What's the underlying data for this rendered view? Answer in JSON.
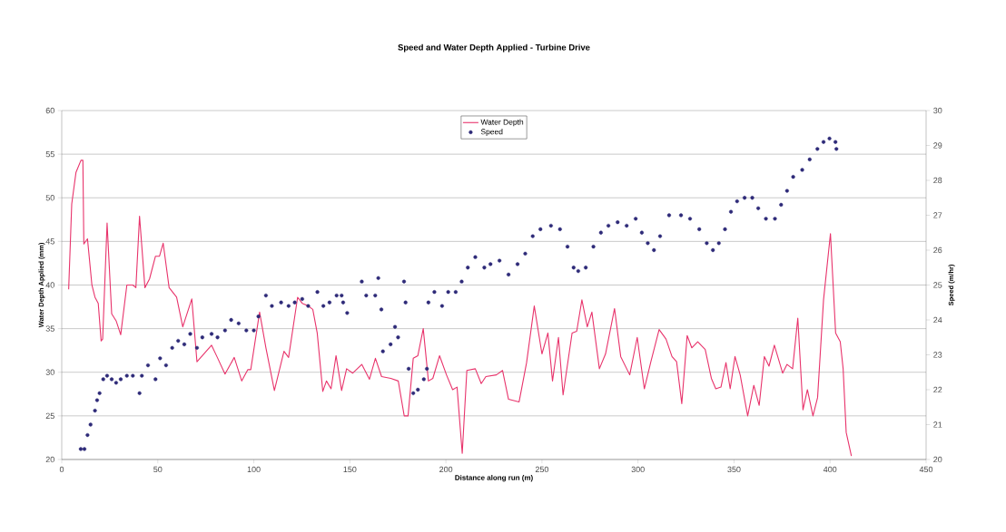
{
  "chart_data": {
    "type": "line",
    "title": "Speed and Water Depth Applied - Turbine Drive",
    "xlabel": "Distance along run (m)",
    "ylabel": "Water Depth Applied (mm)",
    "y2label": "Speed (m/hr)",
    "xlim": [
      0,
      450
    ],
    "xticks": [
      0,
      50,
      100,
      150,
      200,
      250,
      300,
      350,
      400,
      450
    ],
    "ylim": [
      20,
      60
    ],
    "yticks": [
      20,
      25,
      30,
      35,
      40,
      45,
      50,
      55,
      60
    ],
    "y2lim": [
      20,
      30
    ],
    "y2ticks": [
      20,
      21,
      22,
      23,
      24,
      25,
      26,
      27,
      28,
      29,
      30
    ],
    "grid": "y",
    "legend": "top",
    "series": [
      {
        "name": "Water Depth",
        "color": "#e8336b",
        "marker": "none",
        "line_style": "solid",
        "x": [
          3.6,
          5.2,
          7.4,
          10,
          11,
          11.5,
          13.4,
          15.7,
          17.3,
          19,
          20.5,
          21.3,
          23.6,
          26,
          28.3,
          30.7,
          33.9,
          37,
          38.6,
          40.5,
          43.3,
          45.7,
          48.8,
          50.9,
          52.8,
          55.9,
          59.8,
          63,
          67.7,
          70.4,
          78,
          81,
          85,
          89.8,
          93.7,
          96.9,
          98.4,
          103,
          106.3,
          110.7,
          115.7,
          118.1,
          122.8,
          125.2,
          128.3,
          130.7,
          133,
          135.9,
          137.8,
          140.2,
          142.8,
          145.7,
          148.3,
          151.5,
          156.2,
          160.2,
          163.3,
          166.5,
          171.3,
          175.2,
          178.3,
          180.3,
          183,
          185.4,
          188.2,
          190.9,
          193.2,
          196.7,
          200.3,
          203.5,
          205.8,
          208.5,
          210.9,
          215.3,
          218.4,
          220.8,
          226.3,
          229.5,
          232.6,
          238.1,
          242,
          246,
          250,
          253.1,
          255.5,
          258.6,
          261,
          265.7,
          268.1,
          270.8,
          273.6,
          276,
          279.9,
          283.1,
          287.8,
          291,
          295.7,
          299.6,
          303.3,
          306.7,
          311,
          314.6,
          317.7,
          320.1,
          322.8,
          325.6,
          328,
          331.1,
          335,
          338.2,
          340.5,
          343.2,
          345.8,
          348,
          350.5,
          353.2,
          357.1,
          360.3,
          363.1,
          365.8,
          368.2,
          371,
          375.3,
          377.6,
          380.5,
          383.2,
          385.9,
          388.2,
          391.1,
          393.5,
          396.6,
          400.2,
          402.9,
          405.3,
          406.8,
          408.4,
          411.1
        ],
        "values": [
          39.5,
          49.3,
          52.9,
          54.3,
          54.3,
          44.7,
          45.3,
          40,
          38.6,
          37.9,
          33.6,
          33.8,
          47.1,
          36.7,
          35.9,
          34.3,
          40,
          40,
          39.7,
          47.9,
          39.7,
          40.7,
          43.3,
          43.3,
          44.8,
          39.7,
          38.6,
          35.2,
          38.4,
          31.2,
          33.1,
          31.7,
          29.8,
          31.7,
          29,
          30.3,
          30.3,
          36.9,
          32.8,
          27.9,
          32.4,
          31.7,
          38.6,
          37.9,
          37.6,
          37.2,
          34.5,
          27.8,
          29,
          28.1,
          31.9,
          27.9,
          30.4,
          29.9,
          30.9,
          29.2,
          31.6,
          29.5,
          29.3,
          29,
          25,
          25,
          31.6,
          31.9,
          35,
          29,
          29.3,
          31.9,
          29.7,
          28,
          28.3,
          20.7,
          30.2,
          30.4,
          28.7,
          29.5,
          29.7,
          30.2,
          26.9,
          26.6,
          31.1,
          37.6,
          32.1,
          34.5,
          29,
          34,
          27.4,
          34.5,
          34.7,
          38.3,
          35.2,
          36.9,
          30.4,
          32.1,
          37.3,
          31.8,
          29.7,
          34,
          28.1,
          31.2,
          34.9,
          33.8,
          31.8,
          31.2,
          26.4,
          34.2,
          32.8,
          33.5,
          32.6,
          29.3,
          28.1,
          28.3,
          31.1,
          28.1,
          31.8,
          29.7,
          25,
          28.5,
          26.2,
          31.8,
          30.7,
          33.1,
          29.9,
          30.9,
          30.4,
          36.2,
          25.7,
          28,
          25,
          27.1,
          38.3,
          45.9,
          34.5,
          33.5,
          30.4,
          23.1,
          20.4
        ]
      },
      {
        "name": "Speed",
        "type": "scatter",
        "axis": "y2",
        "color": "#2e2a78",
        "marker": "circle",
        "x": [
          9.9,
          11.8,
          13.4,
          15,
          17.3,
          18.4,
          19.7,
          21.6,
          23.6,
          26,
          28.3,
          30.7,
          33.9,
          37,
          40.5,
          41.7,
          44.9,
          48.8,
          51.2,
          54.3,
          57.5,
          60.6,
          63.8,
          66.9,
          70.4,
          73.2,
          78,
          81.1,
          85,
          88.2,
          92.1,
          96.1,
          100,
          102.4,
          106.3,
          109.4,
          114.2,
          118.1,
          121.3,
          125.2,
          128.3,
          133.1,
          136.2,
          139.4,
          145.7,
          143.1,
          146.5,
          148.6,
          156.2,
          158.5,
          163.2,
          164.8,
          166.4,
          167.2,
          171.2,
          173.5,
          175.1,
          178.2,
          179,
          180.6,
          183,
          185.4,
          188.5,
          190.1,
          190.9,
          194,
          198,
          201.2,
          205.1,
          208.2,
          211.4,
          215.3,
          220,
          223.2,
          227.9,
          232.6,
          237.3,
          241.3,
          245.2,
          249.2,
          254.7,
          259.4,
          263.3,
          266.5,
          268.9,
          272.8,
          276.8,
          280.7,
          284.6,
          289.4,
          294.1,
          298.8,
          302,
          305.1,
          308.3,
          311.5,
          316.2,
          322.4,
          327.1,
          331.9,
          335.8,
          339,
          342.1,
          345.3,
          348.4,
          351.6,
          355.5,
          359.5,
          362.6,
          366.6,
          371.3,
          374.5,
          377.6,
          380.8,
          385.5,
          389.4,
          393.4,
          396.6,
          399.7,
          402.8,
          403.3
        ],
        "values": [
          20.3,
          20.3,
          20.7,
          21,
          21.4,
          21.7,
          21.9,
          22.3,
          22.4,
          22.3,
          22.2,
          22.3,
          22.4,
          22.4,
          21.9,
          22.4,
          22.7,
          22.3,
          22.9,
          22.7,
          23.2,
          23.4,
          23.3,
          23.6,
          23.2,
          23.5,
          23.6,
          23.5,
          23.7,
          24,
          23.9,
          23.7,
          23.7,
          24.1,
          24.7,
          24.4,
          24.5,
          24.4,
          24.5,
          24.6,
          24.4,
          24.8,
          24.4,
          24.5,
          24.7,
          24.7,
          24.5,
          24.2,
          25.1,
          24.7,
          24.7,
          25.2,
          24.3,
          23.1,
          23.3,
          23.8,
          23.5,
          25.1,
          24.5,
          22.6,
          21.9,
          22,
          22.3,
          22.6,
          24.5,
          24.8,
          24.4,
          24.8,
          24.8,
          25.1,
          25.5,
          25.8,
          25.5,
          25.6,
          25.7,
          25.3,
          25.6,
          25.9,
          26.4,
          26.6,
          26.7,
          26.6,
          26.1,
          25.5,
          25.4,
          25.5,
          26.1,
          26.5,
          26.7,
          26.8,
          26.7,
          26.9,
          26.5,
          26.2,
          26,
          26.4,
          27,
          27,
          26.9,
          26.6,
          26.2,
          26,
          26.2,
          26.6,
          27.1,
          27.4,
          27.5,
          27.5,
          27.2,
          26.9,
          26.9,
          27.3,
          27.7,
          28.1,
          28.3,
          28.6,
          28.9,
          29.1,
          29.2,
          29.1,
          28.9
        ]
      }
    ]
  }
}
